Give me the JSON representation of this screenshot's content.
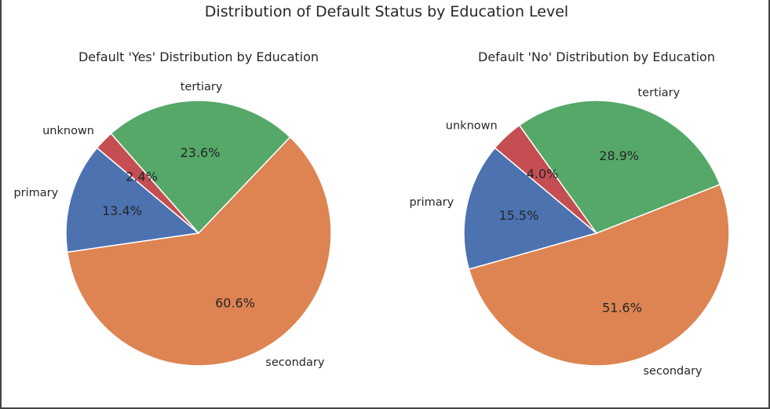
{
  "figure": {
    "title": "Distribution of Default Status by Education Level"
  },
  "chart_data": [
    {
      "type": "pie",
      "title": "Default 'Yes' Distribution by Education",
      "categories": [
        "primary",
        "secondary",
        "tertiary",
        "unknown"
      ],
      "values": [
        13.4,
        60.6,
        23.6,
        2.4
      ],
      "labels": [
        "13.4%",
        "60.6%",
        "23.6%",
        "2.4%"
      ],
      "colors": [
        "#4c72b0",
        "#dd8452",
        "#55a868",
        "#c44e52"
      ],
      "start_angle_deg": 140,
      "direction": "counterclockwise"
    },
    {
      "type": "pie",
      "title": "Default 'No' Distribution by Education",
      "categories": [
        "primary",
        "secondary",
        "tertiary",
        "unknown"
      ],
      "values": [
        15.5,
        51.6,
        28.9,
        4.0
      ],
      "labels": [
        "15.5%",
        "51.6%",
        "28.9%",
        "4.0%"
      ],
      "colors": [
        "#4c72b0",
        "#dd8452",
        "#55a868",
        "#c44e52"
      ],
      "start_angle_deg": 140,
      "direction": "counterclockwise"
    }
  ]
}
